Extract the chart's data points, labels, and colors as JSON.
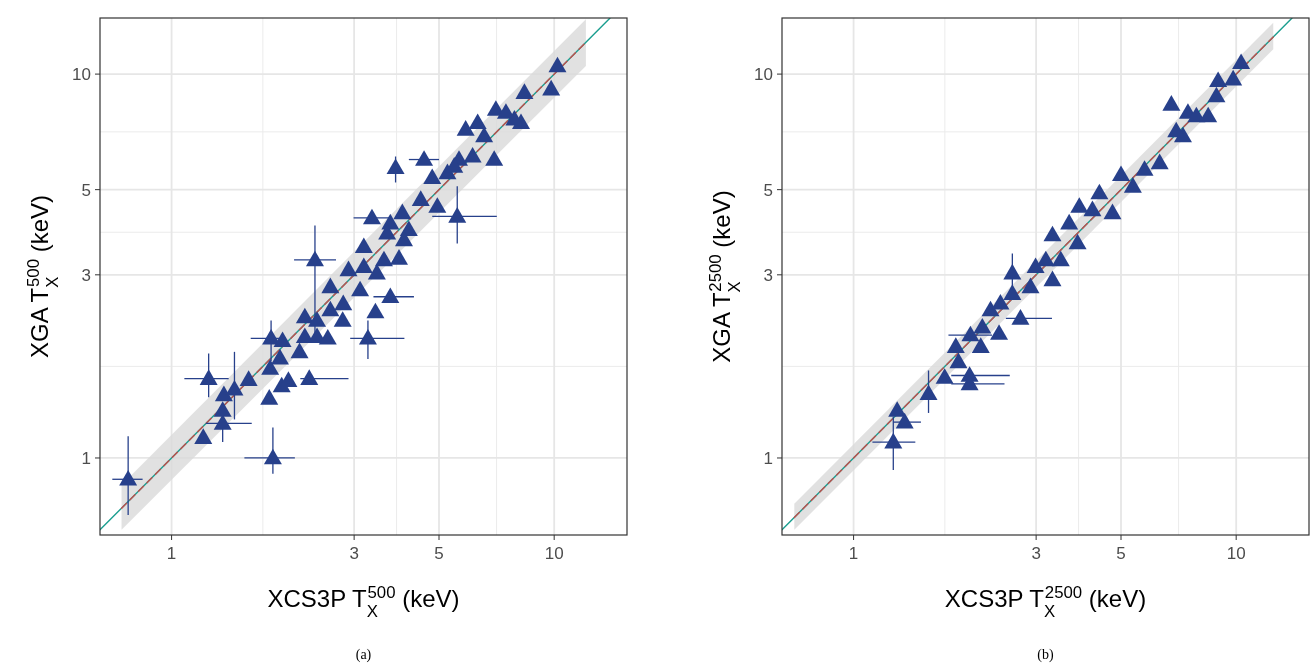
{
  "chart_data": [
    {
      "type": "scatter",
      "xlabel": "XCS3P T$_{X}$$^{500}$ (keV)",
      "ylabel": "XGA T$_{X}$$^{500}$ (keV)",
      "annotations": [
        "(a)"
      ],
      "xlim": [
        0.65,
        15.5
      ],
      "ylim": [
        0.63,
        14
      ],
      "xticks": [
        1,
        3,
        5,
        10
      ],
      "yticks": [
        1,
        3,
        5,
        10
      ],
      "log": "xy",
      "grid": true,
      "series": [
        {
          "type": "line",
          "color": "#1a9e8f",
          "line_style": "solid",
          "x": [
            0.65,
            14
          ],
          "values": [
            0.65,
            14
          ]
        },
        {
          "type": "line",
          "color": "#c0504d",
          "line_style": "dashed",
          "x": [
            0.74,
            12.1
          ],
          "values": [
            0.74,
            12.1
          ],
          "lower": [
            0.65,
            10.5
          ],
          "upper": [
            0.85,
            13.9
          ]
        },
        {
          "marker": "triangle",
          "color": "#27408b",
          "x": [
            0.77,
            1.84,
            1.21,
            1.36,
            1.36,
            1.25,
            1.37,
            1.46,
            1.59,
            1.8,
            1.94,
            2.02,
            2.29,
            1.81,
            1.92,
            2.16,
            1.82,
            1.95,
            2.23,
            2.4,
            2.56,
            3.26,
            2.23,
            2.4,
            2.6,
            2.8,
            2.37,
            2.6,
            2.81,
            3.11,
            3.41,
            3.73,
            2.9,
            3.18,
            3.44,
            3.59,
            3.93,
            3.18,
            3.34,
            3.73,
            4.01,
            4.17,
            4.05,
            3.85,
            4.57,
            4.95,
            5.58,
            5.26,
            5.64,
            4.8,
            6.12,
            6.97,
            5.87,
            6.31,
            7.04,
            7.48,
            6.56,
            8.19,
            8.36,
            9.82,
            10.2,
            7.87,
            5.48,
            3.66,
            4.48
          ],
          "values": [
            0.88,
            1.0,
            1.13,
            1.23,
            1.33,
            1.61,
            1.46,
            1.51,
            1.6,
            1.43,
            1.54,
            1.59,
            1.61,
            1.71,
            1.82,
            1.89,
            2.05,
            2.02,
            2.07,
            2.07,
            2.05,
            2.05,
            2.33,
            2.28,
            2.43,
            2.28,
            3.28,
            2.79,
            2.52,
            2.74,
            2.4,
            2.63,
            3.09,
            3.15,
            3.03,
            3.28,
            3.31,
            3.55,
            4.22,
            4.09,
            4.35,
            3.93,
            3.7,
            5.7,
            5.99,
            4.52,
            4.26,
            5.53,
            5.99,
            5.37,
            6.11,
            5.99,
            7.18,
            7.47,
            8.09,
            7.94,
            6.9,
            7.47,
            8.95,
            9.14,
            10.5,
            7.63,
            5.75,
            3.85,
            4.71
          ],
          "xerrors": [
            [
              0.7,
              0.84
            ],
            [
              1.55,
              2.1
            ],
            null,
            [
              1.23,
              1.62
            ],
            null,
            [
              1.08,
              1.41
            ],
            null,
            null,
            null,
            null,
            null,
            null,
            [
              2.17,
              2.9
            ],
            null,
            null,
            null,
            [
              1.61,
              1.99
            ],
            null,
            null,
            null,
            null,
            [
              2.93,
              4.06
            ],
            null,
            null,
            null,
            null,
            [
              2.09,
              2.69
            ],
            null,
            null,
            null,
            null,
            [
              3.37,
              4.3
            ],
            null,
            null,
            null,
            null,
            null,
            null,
            [
              2.99,
              3.73
            ],
            null,
            null,
            null,
            null,
            null,
            [
              4.17,
              5.0
            ],
            null,
            [
              4.8,
              7.08
            ],
            null,
            null,
            null,
            null,
            null,
            null,
            null,
            null,
            null,
            null,
            null,
            null,
            null,
            null,
            null,
            null,
            null,
            null
          ],
          "errors": [
            [
              0.71,
              1.14
            ],
            [
              0.91,
              1.2
            ],
            null,
            [
              1.1,
              1.36
            ],
            null,
            [
              1.44,
              1.87
            ],
            null,
            [
              1.26,
              1.89
            ],
            null,
            null,
            null,
            null,
            null,
            null,
            null,
            null,
            [
              1.79,
              2.28
            ],
            null,
            null,
            null,
            null,
            [
              1.81,
              2.28
            ],
            null,
            null,
            null,
            null,
            [
              2.11,
              4.03
            ],
            null,
            null,
            null,
            null,
            null,
            null,
            null,
            null,
            null,
            null,
            null,
            null,
            null,
            null,
            null,
            null,
            [
              5.22,
              6.1
            ],
            null,
            null,
            [
              3.62,
              5.1
            ],
            null,
            null,
            null,
            null,
            null,
            null,
            null,
            null,
            null,
            null,
            null,
            null,
            null,
            null,
            null,
            null,
            null,
            null
          ]
        }
      ]
    },
    {
      "type": "scatter",
      "xlabel": "XCS3P T$_{X}$$^{2500}$ (keV)",
      "ylabel": "XGA T$_{X}$$^{2500}$ (keV)",
      "annotations": [
        "(b)"
      ],
      "xlim": [
        0.65,
        15.5
      ],
      "ylim": [
        0.63,
        14
      ],
      "xticks": [
        1,
        3,
        5,
        10
      ],
      "yticks": [
        1,
        3,
        5,
        10
      ],
      "log": "xy",
      "grid": true,
      "series": [
        {
          "type": "line",
          "color": "#1a9e8f",
          "line_style": "solid",
          "x": [
            0.65,
            14
          ],
          "values": [
            0.65,
            14
          ]
        },
        {
          "type": "line",
          "color": "#c0504d",
          "line_style": "dashed",
          "x": [
            0.7,
            12.5
          ],
          "values": [
            0.7,
            12.5
          ],
          "lower": [
            0.65,
            11.6
          ],
          "upper": [
            0.76,
            13.6
          ]
        },
        {
          "marker": "triangle",
          "color": "#27408b",
          "x": [
            1.27,
            1.3,
            1.36,
            1.57,
            1.73,
            1.88,
            2.01,
            2.01,
            2.02,
            2.15,
            2.28,
            2.42,
            2.4,
            2.6,
            2.6,
            2.73,
            2.9,
            3.18,
            3.31,
            3.31,
            3.48,
            3.66,
            3.85,
            3.89,
            4.21,
            4.75,
            5.0,
            5.37,
            5.76,
            6.31,
            6.77,
            7.26,
            7.48,
            7.87,
            8.45,
            8.88,
            8.97,
            9.82,
            10.3,
            6.97,
            4.39,
            2.99,
            2.17,
            1.85
          ],
          "values": [
            1.1,
            1.33,
            1.24,
            1.47,
            1.62,
            1.78,
            1.64,
            1.56,
            2.09,
            1.95,
            2.43,
            2.53,
            2.11,
            3.03,
            2.68,
            2.31,
            2.79,
            3.28,
            3.81,
            2.91,
            3.28,
            4.09,
            3.63,
            4.52,
            4.43,
            4.35,
            5.47,
            5.1,
            5.64,
            5.87,
            8.34,
            6.9,
            7.94,
            7.78,
            7.78,
            8.77,
            9.61,
            9.7,
            10.7,
            7.11,
            4.9,
            3.15,
            2.19,
            1.95
          ],
          "xerrors": [
            [
              1.12,
              1.45
            ],
            null,
            [
              1.27,
              1.5
            ],
            null,
            null,
            null,
            [
              1.8,
              2.56
            ],
            [
              1.8,
              2.48
            ],
            [
              1.77,
              2.3
            ],
            null,
            null,
            null,
            null,
            null,
            null,
            [
              2.5,
              3.3
            ],
            null,
            null,
            null,
            null,
            null,
            null,
            null,
            null,
            null,
            null,
            null,
            null,
            null,
            null,
            null,
            null,
            null,
            null,
            null,
            null,
            null,
            null,
            null,
            null,
            null,
            null,
            null,
            null
          ],
          "errors": [
            [
              0.93,
              1.28
            ],
            null,
            null,
            [
              1.31,
              1.69
            ],
            null,
            null,
            null,
            null,
            null,
            null,
            null,
            null,
            null,
            [
              2.7,
              3.41
            ],
            null,
            null,
            null,
            null,
            null,
            null,
            null,
            null,
            null,
            null,
            null,
            null,
            null,
            null,
            null,
            null,
            null,
            null,
            null,
            null,
            null,
            null,
            null,
            null,
            null,
            null,
            null,
            null,
            null,
            null
          ]
        }
      ]
    }
  ]
}
